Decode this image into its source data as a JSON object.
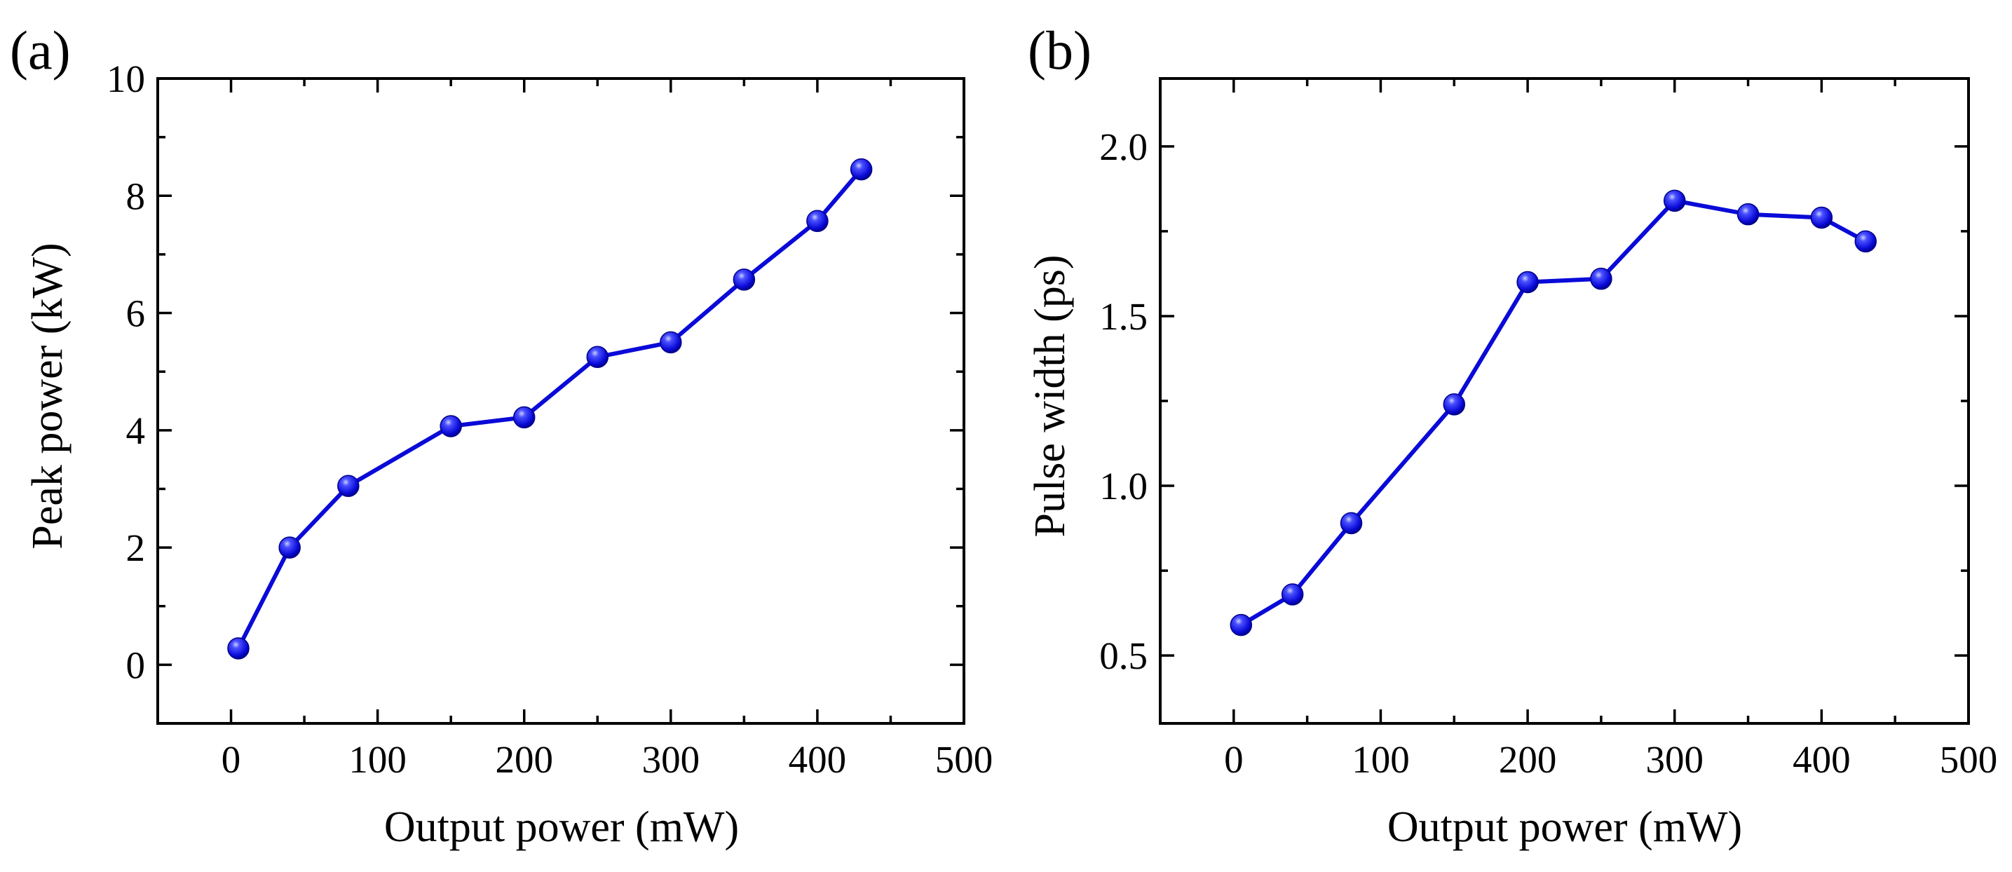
{
  "colors": {
    "series": "#0a0ad8",
    "axis": "#000000",
    "marker_highlight": "#9aa8ff",
    "marker_shadow": "#00008a"
  },
  "chart_data": [
    {
      "panel_label": "(a)",
      "type": "line",
      "xlabel": "Output power (mW)",
      "ylabel": "Peak power (kW)",
      "xlim": [
        -50,
        500
      ],
      "ylim": [
        -1,
        10
      ],
      "xticks": [
        0,
        100,
        200,
        300,
        400,
        500
      ],
      "xtick_labels": [
        "0",
        "100",
        "200",
        "300",
        "400",
        "500"
      ],
      "yticks": [
        0,
        2,
        4,
        6,
        8,
        10
      ],
      "ytick_labels": [
        "0",
        "2",
        "4",
        "6",
        "8",
        "10"
      ],
      "grid": false,
      "series": [
        {
          "name": "Peak power",
          "x": [
            5,
            40,
            80,
            150,
            200,
            250,
            300,
            350,
            400,
            430
          ],
          "y": [
            0.28,
            2.0,
            3.05,
            4.07,
            4.22,
            5.25,
            5.5,
            6.57,
            7.57,
            8.45
          ]
        }
      ]
    },
    {
      "panel_label": "(b)",
      "type": "line",
      "xlabel": "Output power (mW)",
      "ylabel": "Pulse width (ps)",
      "xlim": [
        -50,
        500
      ],
      "ylim": [
        0.3,
        2.2
      ],
      "xticks": [
        0,
        100,
        200,
        300,
        400,
        500
      ],
      "xtick_labels": [
        "0",
        "100",
        "200",
        "300",
        "400",
        "500"
      ],
      "yticks": [
        0.5,
        1.0,
        1.5,
        2.0
      ],
      "ytick_labels": [
        "0.5",
        "1.0",
        "1.5",
        "2.0"
      ],
      "grid": false,
      "series": [
        {
          "name": "Pulse width",
          "x": [
            5,
            40,
            80,
            150,
            200,
            250,
            300,
            350,
            400,
            430
          ],
          "y": [
            0.59,
            0.68,
            0.89,
            1.24,
            1.6,
            1.61,
            1.84,
            1.8,
            1.79,
            1.72
          ]
        }
      ]
    }
  ]
}
